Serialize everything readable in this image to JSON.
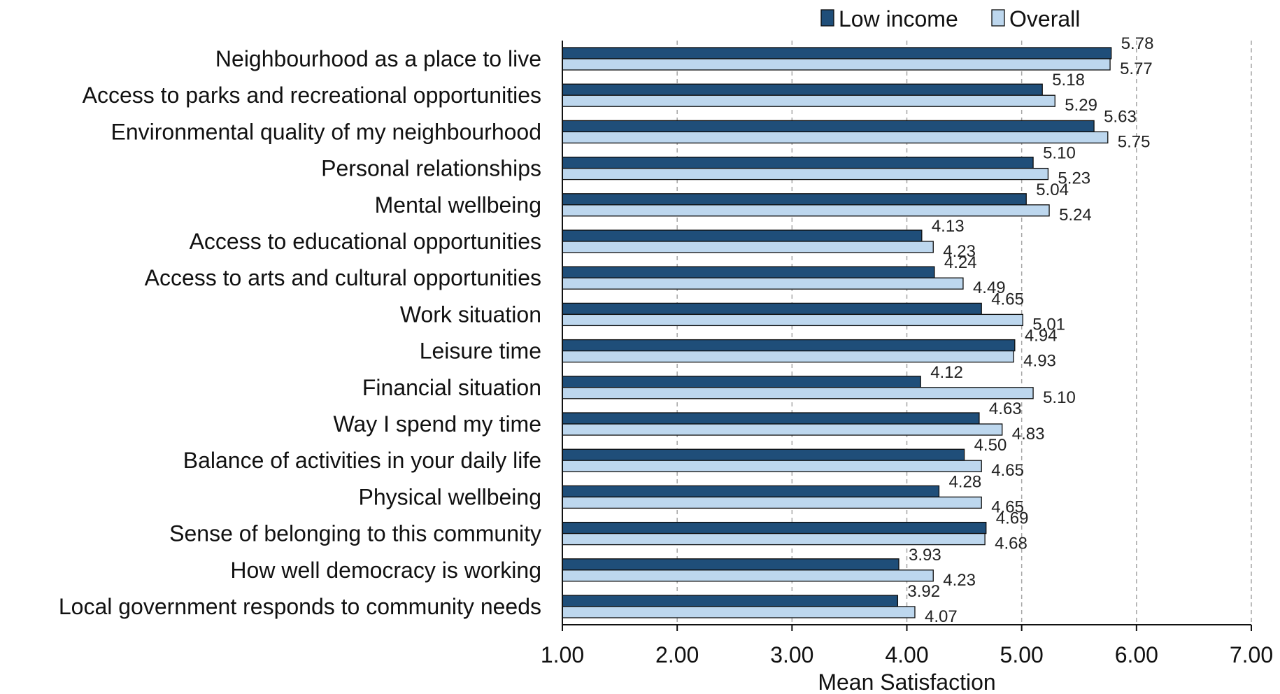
{
  "chart_data": {
    "type": "bar",
    "orientation": "horizontal",
    "categories": [
      "Neighbourhood as a place to live",
      "Access to parks and recreational opportunities",
      "Environmental quality of my neighbourhood",
      "Personal relationships",
      "Mental wellbeing",
      "Access to educational opportunities",
      "Access to arts and cultural opportunities",
      "Work situation",
      "Leisure time",
      "Financial situation",
      "Way I spend my time",
      "Balance of activities in your daily life",
      "Physical wellbeing",
      "Sense of belonging to this community",
      "How well democracy is working",
      "Local government responds to community needs"
    ],
    "series": [
      {
        "name": "Low income",
        "color": "#1f4e79",
        "values": [
          5.78,
          5.18,
          5.63,
          5.1,
          5.04,
          4.13,
          4.24,
          4.65,
          4.94,
          4.12,
          4.63,
          4.5,
          4.28,
          4.69,
          3.93,
          3.92
        ],
        "labels": [
          "5.78",
          "5.18",
          "5.63",
          "5.10",
          "5.04",
          "4.13",
          "4.24",
          "4.65",
          "4.94",
          "4.12",
          "4.63",
          "4.50",
          "4.28",
          "4.69",
          "3.93",
          "3.92"
        ]
      },
      {
        "name": "Overall",
        "color": "#bdd7ee",
        "values": [
          5.77,
          5.29,
          5.75,
          5.23,
          5.24,
          4.23,
          4.49,
          5.01,
          4.93,
          5.1,
          4.83,
          4.65,
          4.65,
          4.68,
          4.23,
          4.07
        ],
        "labels": [
          "5.77",
          "5.29",
          "5.75",
          "5.23",
          "5.24",
          "4.23",
          "4.49",
          "5.01",
          "4.93",
          "5.10",
          "4.83",
          "4.65",
          "4.65",
          "4.68",
          "4.23",
          "4.07"
        ]
      }
    ],
    "xlabel": "Mean Satisfaction",
    "xlim": [
      1.0,
      7.0
    ],
    "xticks": [
      1,
      2,
      3,
      4,
      5,
      6,
      7
    ],
    "xtick_labels": [
      "1.00",
      "2.00",
      "3.00",
      "4.00",
      "5.00",
      "6.00",
      "7.00"
    ],
    "grid": "vertical dashed",
    "legend_position": "top"
  }
}
